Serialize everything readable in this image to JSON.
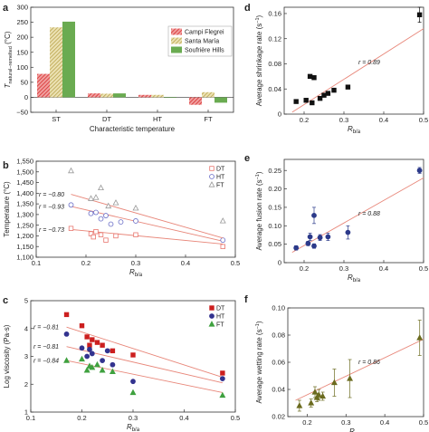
{
  "chart_data": [
    {
      "panel": "a",
      "type": "bar",
      "categories": [
        "ST",
        "DT",
        "HT",
        "FT"
      ],
      "series": [
        {
          "name": "Campi Flegrei",
          "values": [
            78,
            13,
            8,
            -25
          ],
          "color": "#e24a4a",
          "pattern": "hatch"
        },
        {
          "name": "Santa María",
          "values": [
            233,
            12,
            8,
            17
          ],
          "color": "#c9b65c",
          "pattern": "hatch"
        },
        {
          "name": "Soufrière Hills",
          "values": [
            252,
            13,
            0,
            -18
          ],
          "color": "#6aab51",
          "pattern": "solid"
        }
      ],
      "xlabel": "Characteristic temperature",
      "ylabel": "T",
      "ylabel_sub": "natural−remelted",
      "ylabel_unit": " (°C)",
      "ylim": [
        -50,
        300
      ],
      "yticks": [
        "−50",
        "0",
        "50",
        "100",
        "150",
        "200",
        "250",
        "300"
      ],
      "legend": "top-right"
    },
    {
      "panel": "b",
      "type": "scatter",
      "xlabel": "R",
      "xlabel_sub": "b/a",
      "ylabel": "Temperature (°C)",
      "xlim": [
        0.1,
        0.5
      ],
      "ylim": [
        1100,
        1550
      ],
      "xticks": [
        "0.1",
        "0.2",
        "0.3",
        "0.4",
        "0.5"
      ],
      "yticks": [
        "1,100",
        "1,150",
        "1,200",
        "1,250",
        "1,300",
        "1,350",
        "1,400",
        "1,450",
        "1,500",
        "1,550"
      ],
      "legend": "top-right",
      "series": [
        {
          "name": "DT",
          "marker": "square",
          "color": "#e8766e",
          "x": [
            0.17,
            0.21,
            0.215,
            0.22,
            0.23,
            0.24,
            0.26,
            0.3,
            0.475
          ],
          "y": [
            1235,
            1210,
            1195,
            1220,
            1205,
            1180,
            1200,
            1205,
            1150
          ],
          "fit": [
            [
              0.17,
              1230
            ],
            [
              0.475,
              1162
            ]
          ],
          "r": "r = −0.73"
        },
        {
          "name": "HT",
          "marker": "circle",
          "color": "#6b6fc8",
          "x": [
            0.17,
            0.21,
            0.22,
            0.23,
            0.24,
            0.25,
            0.27,
            0.3,
            0.475
          ],
          "y": [
            1345,
            1305,
            1310,
            1280,
            1295,
            1255,
            1265,
            1270,
            1180
          ],
          "fit": [
            [
              0.17,
              1338
            ],
            [
              0.475,
              1175
            ]
          ],
          "r": "r = −0.93"
        },
        {
          "name": "FT",
          "marker": "triangle",
          "color": "#999999",
          "x": [
            0.17,
            0.21,
            0.22,
            0.23,
            0.245,
            0.26,
            0.3,
            0.475
          ],
          "y": [
            1505,
            1375,
            1380,
            1425,
            1340,
            1355,
            1330,
            1270
          ],
          "fit": [
            [
              0.17,
              1395
            ],
            [
              0.475,
              1190
            ]
          ],
          "r": "r = −0.80"
        }
      ]
    },
    {
      "panel": "c",
      "type": "scatter",
      "xlabel": "R",
      "xlabel_sub": "b/a",
      "ylabel": "Log viscosity (Pa·s)",
      "xlim": [
        0.1,
        0.5
      ],
      "ylim": [
        1,
        5
      ],
      "xticks": [
        "0.1",
        "0.2",
        "0.3",
        "0.4",
        "0.5"
      ],
      "yticks": [
        "1",
        "2",
        "3",
        "4",
        "5"
      ],
      "legend": "top-right",
      "series": [
        {
          "name": "DT",
          "marker": "square",
          "color": "#cc1f1f",
          "x": [
            0.17,
            0.2,
            0.21,
            0.215,
            0.22,
            0.23,
            0.24,
            0.26,
            0.3,
            0.475
          ],
          "y": [
            4.5,
            4.1,
            3.7,
            3.4,
            3.6,
            3.5,
            3.4,
            3.2,
            3.05,
            2.4
          ],
          "fit": [
            [
              0.17,
              4.05
            ],
            [
              0.475,
              2.25
            ]
          ],
          "r": "r = −0.81"
        },
        {
          "name": "HT",
          "marker": "circle",
          "color": "#33338f",
          "x": [
            0.17,
            0.2,
            0.21,
            0.215,
            0.22,
            0.24,
            0.25,
            0.26,
            0.3,
            0.475
          ],
          "y": [
            3.8,
            3.3,
            3.0,
            3.25,
            3.1,
            2.85,
            3.2,
            2.7,
            2.1,
            2.2
          ],
          "fit": [
            [
              0.17,
              3.35
            ],
            [
              0.475,
              2.05
            ]
          ],
          "r": "r = −0.81"
        },
        {
          "name": "FT",
          "marker": "triangle",
          "color": "#3fa13f",
          "x": [
            0.17,
            0.2,
            0.21,
            0.215,
            0.22,
            0.23,
            0.24,
            0.26,
            0.3,
            0.475
          ],
          "y": [
            2.85,
            2.9,
            2.5,
            2.65,
            2.6,
            2.7,
            2.5,
            2.45,
            1.7,
            1.6
          ],
          "fit": [
            [
              0.17,
              2.85
            ],
            [
              0.475,
              1.7
            ]
          ],
          "r": "r = −0.84"
        }
      ]
    },
    {
      "panel": "d",
      "type": "scatter",
      "xlabel": "R",
      "xlabel_sub": "b/a",
      "ylabel": "Average shrinkage rate (s",
      "ylabel_sup": "−1",
      "ylabel_end": ")",
      "xlim": [
        0.15,
        0.5
      ],
      "ylim": [
        0,
        0.17
      ],
      "xticks": [
        "0.2",
        "0.3",
        "0.4",
        "0.5"
      ],
      "yticks": [
        "0",
        "0.04",
        "0.08",
        "0.12",
        "0.16"
      ],
      "series": [
        {
          "marker": "square",
          "color": "#111111",
          "x": [
            0.18,
            0.205,
            0.215,
            0.22,
            0.225,
            0.24,
            0.25,
            0.26,
            0.275,
            0.31,
            0.49
          ],
          "y": [
            0.02,
            0.022,
            0.06,
            0.018,
            0.058,
            0.025,
            0.03,
            0.033,
            0.038,
            0.043,
            0.158
          ],
          "err": [
            0,
            0,
            0,
            0,
            0,
            0,
            0,
            0,
            0,
            0,
            0.012
          ],
          "fit": [
            [
              0.17,
              0.003
            ],
            [
              0.5,
              0.136
            ]
          ],
          "r": "r = 0.89"
        }
      ]
    },
    {
      "panel": "e",
      "type": "scatter",
      "xlabel": "R",
      "xlabel_sub": "b/a",
      "ylabel": "Average fusion rate (s",
      "ylabel_sup": "−1",
      "ylabel_end": ")",
      "xlim": [
        0.15,
        0.5
      ],
      "ylim": [
        0,
        0.28
      ],
      "xticks": [
        "0.2",
        "0.3",
        "0.4",
        "0.5"
      ],
      "yticks": [
        "0",
        "0.05",
        "0.10",
        "0.15",
        "0.20",
        "0.25"
      ],
      "series": [
        {
          "marker": "circle",
          "color": "#2c3a8a",
          "x": [
            0.18,
            0.21,
            0.215,
            0.225,
            0.24,
            0.26,
            0.31,
            0.49
          ],
          "y": [
            0.04,
            0.052,
            0.07,
            0.045,
            0.068,
            0.07,
            0.082,
            0.25
          ],
          "err": [
            0.006,
            0.006,
            0.01,
            0.006,
            0.008,
            0.01,
            0.018,
            0.008
          ],
          "fit": [
            [
              0.17,
              0.028
            ],
            [
              0.5,
              0.23
            ]
          ],
          "r": "r = 0.88"
        },
        {
          "marker": "circle",
          "color": "#2c3a8a",
          "x": [
            0.225
          ],
          "y": [
            0.128
          ],
          "err": [
            0.022
          ],
          "fit": null,
          "r": ""
        }
      ]
    },
    {
      "panel": "f",
      "type": "scatter",
      "xlabel": "R",
      "xlabel_sub": "b/a",
      "ylabel": "Average wetting rate (s",
      "ylabel_sup": "−1",
      "ylabel_end": ")",
      "xlim": [
        0.15,
        0.5
      ],
      "ylim": [
        0.02,
        0.1
      ],
      "xticks": [
        "0.2",
        "0.3",
        "0.4",
        "0.5"
      ],
      "yticks": [
        "0.02",
        "0.04",
        "0.06",
        "0.08",
        "0.10"
      ],
      "series": [
        {
          "marker": "triangle",
          "color": "#6b6b1f",
          "x": [
            0.18,
            0.21,
            0.22,
            0.225,
            0.23,
            0.24,
            0.27,
            0.31,
            0.49
          ],
          "y": [
            0.028,
            0.03,
            0.038,
            0.034,
            0.036,
            0.035,
            0.045,
            0.048,
            0.078
          ],
          "err": [
            0.004,
            0.003,
            0.004,
            0.003,
            0.004,
            0.003,
            0.01,
            0.014,
            0.013
          ],
          "fit": [
            [
              0.17,
              0.032
            ],
            [
              0.5,
              0.077
            ]
          ],
          "r": "r = 0.86"
        }
      ]
    }
  ]
}
